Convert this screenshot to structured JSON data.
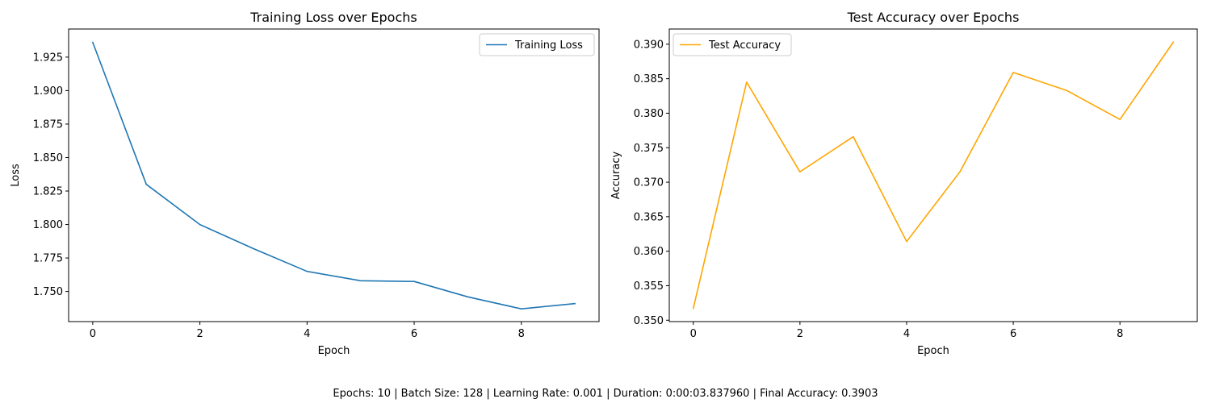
{
  "chart_data": [
    {
      "type": "line",
      "title": "Training Loss over Epochs",
      "xlabel": "Epoch",
      "ylabel": "Loss",
      "x": [
        0,
        1,
        2,
        3,
        4,
        5,
        6,
        7,
        8,
        9
      ],
      "series": [
        {
          "name": "Training Loss",
          "color": "#1f77b4",
          "values": [
            1.936,
            1.83,
            1.8,
            1.782,
            1.765,
            1.758,
            1.7575,
            1.746,
            1.737,
            1.741
          ]
        }
      ],
      "xlim": [
        -0.45,
        9.45
      ],
      "ylim": [
        1.7275,
        1.946
      ],
      "xticks": [
        0,
        2,
        4,
        6,
        8
      ],
      "xtick_labels": [
        "0",
        "2",
        "4",
        "6",
        "8"
      ],
      "yticks": [
        1.75,
        1.775,
        1.8,
        1.825,
        1.85,
        1.875,
        1.9,
        1.925
      ],
      "ytick_labels": [
        "1.750",
        "1.775",
        "1.800",
        "1.825",
        "1.850",
        "1.875",
        "1.900",
        "1.925"
      ],
      "legend_position": "top-right",
      "grid": false
    },
    {
      "type": "line",
      "title": "Test Accuracy over Epochs",
      "xlabel": "Epoch",
      "ylabel": "Accuracy",
      "x": [
        0,
        1,
        2,
        3,
        4,
        5,
        6,
        7,
        8,
        9
      ],
      "series": [
        {
          "name": "Test Accuracy",
          "color": "#ffa500",
          "values": [
            0.3517,
            0.3845,
            0.3715,
            0.3766,
            0.3614,
            0.3715,
            0.3859,
            0.3833,
            0.3791,
            0.3903
          ]
        }
      ],
      "xlim": [
        -0.45,
        9.45
      ],
      "ylim": [
        0.3498,
        0.3922
      ],
      "xticks": [
        0,
        2,
        4,
        6,
        8
      ],
      "xtick_labels": [
        "0",
        "2",
        "4",
        "6",
        "8"
      ],
      "yticks": [
        0.35,
        0.355,
        0.36,
        0.365,
        0.37,
        0.375,
        0.38,
        0.385,
        0.39
      ],
      "ytick_labels": [
        "0.350",
        "0.355",
        "0.360",
        "0.365",
        "0.370",
        "0.375",
        "0.380",
        "0.385",
        "0.390"
      ],
      "legend_position": "top-left",
      "grid": false
    }
  ],
  "footer": {
    "text": "Epochs: 10 | Batch Size: 128 | Learning Rate: 0.001 | Duration: 0:00:03.837960 | Final Accuracy: 0.3903"
  }
}
